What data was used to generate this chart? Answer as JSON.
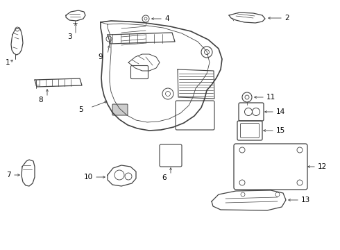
{
  "bg_color": "#ffffff",
  "line_color": "#404040",
  "label_color": "#000000",
  "fig_width": 4.9,
  "fig_height": 3.6,
  "dpi": 100
}
